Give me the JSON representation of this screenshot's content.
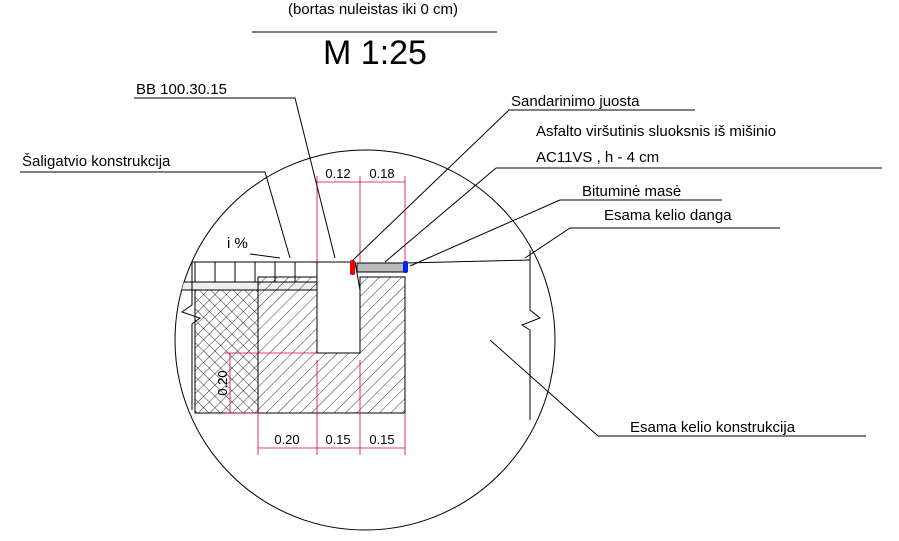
{
  "header": {
    "subtitle": "(bortas nuleistas iki 0 cm)",
    "scale": "M 1:25"
  },
  "labels": {
    "curb": "BB 100.30.15",
    "seal": "Sandarinimo juosta",
    "asphalt_line1": "Asfalto viršutinis sluoksnis iš mišinio",
    "asphalt_line2": "AC11VS , h - 4 cm",
    "bitumen": "Bituminė masė",
    "pavement": "Esama kelio danga",
    "sidewalk": "Šaligatvio konstrukcija",
    "slope": "i %",
    "road": "Esama kelio konstrukcija"
  },
  "dimensions": {
    "top": [
      "0.12",
      "0.18"
    ],
    "left": "0.20",
    "bottom": [
      "0.20",
      "0.15",
      "0.15"
    ]
  }
}
